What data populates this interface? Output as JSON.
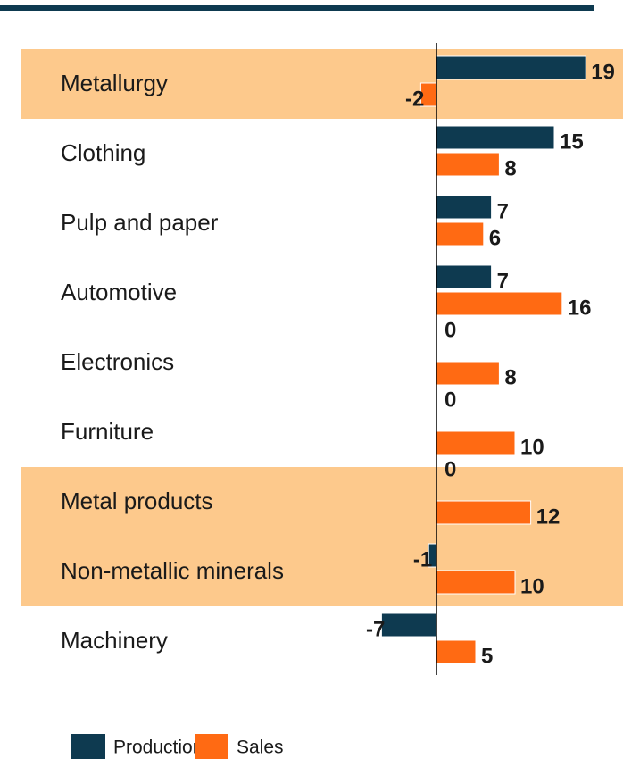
{
  "chart_data": {
    "type": "bar",
    "orientation": "horizontal",
    "categories": [
      "Metallurgy",
      "Clothing",
      "Pulp and paper",
      "Automotive",
      "Electronics",
      "Furniture",
      "Metal products",
      "Non-metallic minerals",
      "Machinery"
    ],
    "series": [
      {
        "name": "Production",
        "color": "#0e3a50",
        "values": [
          19,
          15,
          7,
          7,
          0,
          0,
          0,
          -1,
          -7
        ]
      },
      {
        "name": "Sales",
        "color": "#ff6a13",
        "values": [
          -2,
          8,
          6,
          16,
          8,
          10,
          12,
          10,
          5
        ]
      }
    ],
    "highlight": [
      true,
      false,
      false,
      false,
      false,
      false,
      true,
      true,
      false
    ],
    "highlight_color": "#fdc98c",
    "legend": "bottom-left"
  }
}
